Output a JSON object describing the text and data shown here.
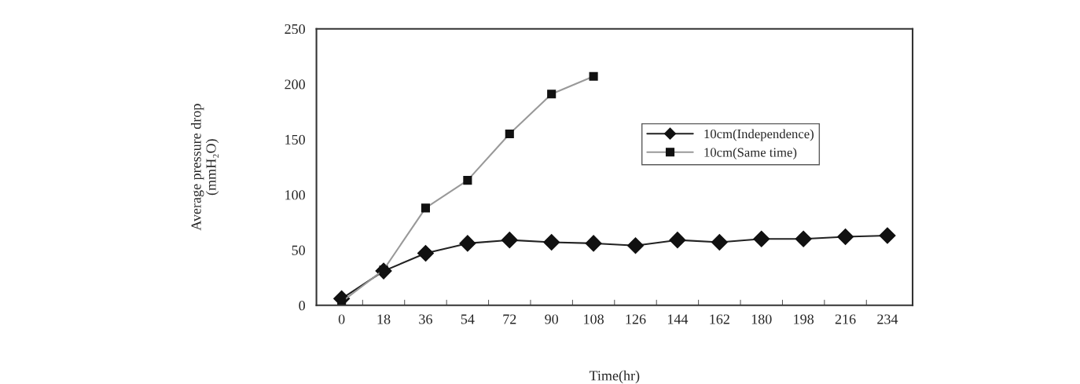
{
  "chart_data": {
    "type": "line",
    "xlabel": "Time(hr)",
    "ylabel": "Average pressure drop\n(mmH₂O)",
    "categories": [
      "0",
      "18",
      "36",
      "54",
      "72",
      "90",
      "108",
      "126",
      "144",
      "162",
      "180",
      "198",
      "216",
      "234"
    ],
    "ylim": [
      0,
      250
    ],
    "yticks": [
      0,
      50,
      100,
      150,
      200,
      250
    ],
    "grid": false,
    "legend": "top right",
    "series": [
      {
        "name": "10cm(Independence)",
        "color": "#222222",
        "marker": "diamond",
        "values": [
          6,
          31,
          47,
          56,
          59,
          57,
          56,
          54,
          59,
          57,
          60,
          60,
          62,
          63
        ]
      },
      {
        "name": "10cm(Same time)",
        "color": "#999999",
        "marker": "square",
        "values": [
          3,
          32,
          88,
          113,
          155,
          191,
          207,
          null,
          null,
          null,
          null,
          null,
          null,
          null
        ]
      }
    ]
  }
}
